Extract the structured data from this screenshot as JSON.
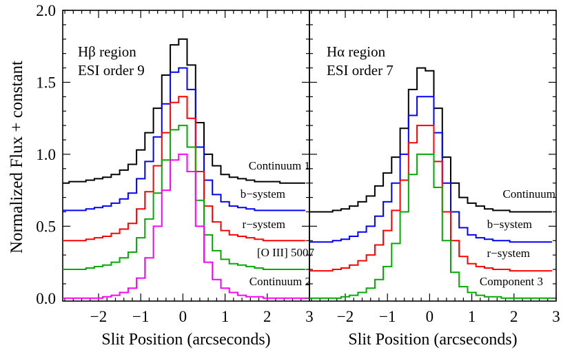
{
  "figure": {
    "ylabel": "Normalized Flux  +  constant"
  },
  "chart_data": [
    {
      "type": "line",
      "step": true,
      "xlabel": "Slit Position (arcseconds)",
      "ylabel": "Normalized Flux  +  constant",
      "xlim": [
        -2.85,
        3
      ],
      "ylim": [
        -0.02,
        2.0
      ],
      "xticks": [
        "−2",
        "−1",
        "0",
        "1",
        "2",
        "3"
      ],
      "yticks": [
        "0.0",
        "0.5",
        "1.0",
        "1.5",
        "2.0"
      ],
      "annotations": [
        "Hβ region",
        "ESI order 9"
      ],
      "x": [
        -2.8,
        -2.6,
        -2.4,
        -2.2,
        -2.0,
        -1.8,
        -1.6,
        -1.4,
        -1.2,
        -1.0,
        -0.8,
        -0.6,
        -0.4,
        -0.2,
        0.0,
        0.2,
        0.4,
        0.6,
        0.8,
        1.0,
        1.2,
        1.4,
        1.6,
        1.8,
        2.0,
        2.2,
        2.4,
        2.6,
        2.8
      ],
      "series": [
        {
          "name": "Continuum 1",
          "color": "#000000",
          "values": [
            0.8,
            0.81,
            0.81,
            0.82,
            0.83,
            0.84,
            0.86,
            0.89,
            0.93,
            1.03,
            1.15,
            1.32,
            1.55,
            1.76,
            1.8,
            1.62,
            1.22,
            1.0,
            0.92,
            0.86,
            0.84,
            0.83,
            0.82,
            0.81,
            0.81,
            0.81,
            0.8,
            0.8,
            0.8
          ]
        },
        {
          "name": "b−system",
          "color": "#0000ff",
          "values": [
            0.61,
            0.61,
            0.61,
            0.62,
            0.63,
            0.64,
            0.66,
            0.69,
            0.73,
            0.83,
            0.95,
            1.12,
            1.35,
            1.57,
            1.6,
            1.45,
            1.05,
            0.82,
            0.72,
            0.67,
            0.64,
            0.63,
            0.62,
            0.61,
            0.61,
            0.61,
            0.61,
            0.61,
            0.61
          ]
        },
        {
          "name": "r−system",
          "color": "#ff0000",
          "values": [
            0.4,
            0.4,
            0.4,
            0.41,
            0.42,
            0.43,
            0.45,
            0.48,
            0.52,
            0.62,
            0.74,
            0.92,
            1.15,
            1.36,
            1.4,
            1.25,
            0.88,
            0.64,
            0.53,
            0.47,
            0.44,
            0.43,
            0.42,
            0.41,
            0.4,
            0.4,
            0.4,
            0.4,
            0.4
          ]
        },
        {
          "name": "[O III] 5007",
          "color": "#00aa00",
          "values": [
            0.2,
            0.2,
            0.2,
            0.21,
            0.22,
            0.23,
            0.25,
            0.28,
            0.32,
            0.42,
            0.55,
            0.73,
            0.96,
            1.17,
            1.2,
            1.05,
            0.68,
            0.44,
            0.33,
            0.27,
            0.24,
            0.23,
            0.22,
            0.21,
            0.2,
            0.2,
            0.2,
            0.2,
            0.2
          ]
        },
        {
          "name": "Continuum 2",
          "color": "#ff00ff",
          "values": [
            0.0,
            0.0,
            0.0,
            0.0,
            0.0,
            0.01,
            0.02,
            0.04,
            0.07,
            0.14,
            0.28,
            0.5,
            0.75,
            0.96,
            1.0,
            0.88,
            0.5,
            0.25,
            0.13,
            0.07,
            0.04,
            0.02,
            0.01,
            0.01,
            0.0,
            0.0,
            0.0,
            0.0,
            0.0
          ]
        }
      ]
    },
    {
      "type": "line",
      "step": true,
      "xlabel": "Slit Position (arcseconds)",
      "xlim": [
        -2.85,
        3
      ],
      "ylim": [
        -0.02,
        2.0
      ],
      "xticks": [
        "−2",
        "−1",
        "0",
        "1",
        "2",
        "3"
      ],
      "annotations": [
        "Hα region",
        "ESI order 7"
      ],
      "x": [
        -2.8,
        -2.6,
        -2.4,
        -2.2,
        -2.0,
        -1.8,
        -1.6,
        -1.4,
        -1.2,
        -1.0,
        -0.8,
        -0.6,
        -0.4,
        -0.2,
        0.0,
        0.2,
        0.4,
        0.6,
        0.8,
        1.0,
        1.2,
        1.4,
        1.6,
        1.8,
        2.0,
        2.2,
        2.4,
        2.6,
        2.8
      ],
      "series": [
        {
          "name": "Continuum",
          "color": "#000000",
          "values": [
            0.6,
            0.6,
            0.6,
            0.61,
            0.62,
            0.64,
            0.67,
            0.71,
            0.78,
            0.87,
            0.98,
            1.18,
            1.45,
            1.6,
            1.58,
            1.32,
            0.98,
            0.8,
            0.7,
            0.66,
            0.64,
            0.62,
            0.61,
            0.61,
            0.6,
            0.6,
            0.6,
            0.6,
            0.6
          ]
        },
        {
          "name": "b−system",
          "color": "#0000ff",
          "values": [
            0.39,
            0.39,
            0.39,
            0.4,
            0.41,
            0.43,
            0.46,
            0.5,
            0.57,
            0.67,
            0.8,
            1.0,
            1.27,
            1.4,
            1.4,
            1.15,
            0.8,
            0.6,
            0.49,
            0.44,
            0.42,
            0.41,
            0.4,
            0.4,
            0.39,
            0.39,
            0.39,
            0.39,
            0.39
          ]
        },
        {
          "name": "r−system",
          "color": "#ff0000",
          "values": [
            0.19,
            0.19,
            0.19,
            0.2,
            0.21,
            0.23,
            0.26,
            0.3,
            0.37,
            0.47,
            0.61,
            0.82,
            1.08,
            1.2,
            1.2,
            0.95,
            0.6,
            0.4,
            0.29,
            0.24,
            0.22,
            0.21,
            0.2,
            0.2,
            0.19,
            0.19,
            0.19,
            0.19,
            0.19
          ]
        },
        {
          "name": "Component 3",
          "color": "#00aa00",
          "values": [
            0.0,
            0.0,
            0.0,
            0.0,
            0.01,
            0.02,
            0.04,
            0.07,
            0.13,
            0.22,
            0.38,
            0.6,
            0.86,
            1.0,
            1.0,
            0.77,
            0.4,
            0.18,
            0.08,
            0.04,
            0.02,
            0.01,
            0.01,
            0.0,
            0.0,
            0.0,
            0.0,
            0.0,
            0.0
          ]
        }
      ]
    }
  ]
}
